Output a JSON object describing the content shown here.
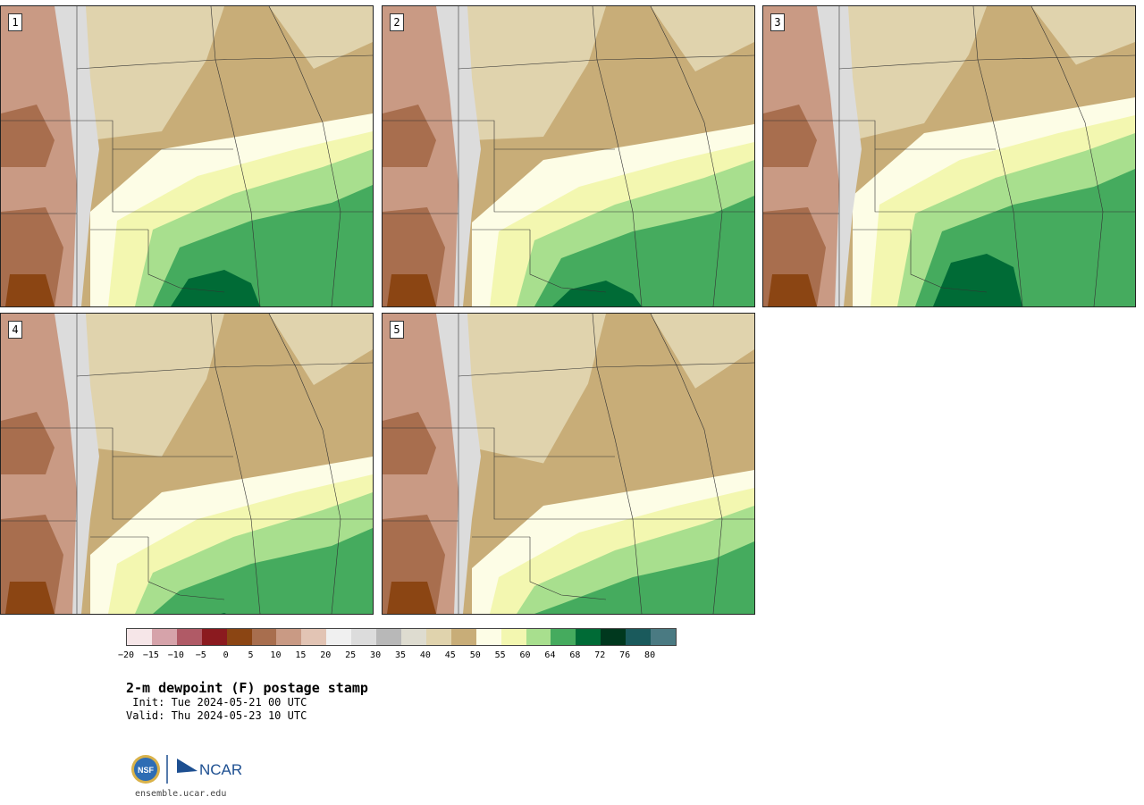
{
  "panels": [
    {
      "label": "1"
    },
    {
      "label": "2"
    },
    {
      "label": "3"
    },
    {
      "label": "4"
    },
    {
      "label": "5"
    }
  ],
  "colorbar": {
    "colors": [
      "#f6e6e8",
      "#d6a3aa",
      "#b05a66",
      "#8b1a1f",
      "#8b4513",
      "#a86e4e",
      "#c99a84",
      "#e2c4b4",
      "#f0f0f0",
      "#dcdcdc",
      "#b8b8b8",
      "#dedcd0",
      "#e0d3ad",
      "#c8ad78",
      "#fdfde6",
      "#f3f7b0",
      "#a8df8e",
      "#45ab5e",
      "#006b36",
      "#00381e",
      "#1a5a5c",
      "#4a7a82"
    ],
    "ticks": [
      "−20",
      "−15",
      "−10",
      "−5",
      "0",
      "5",
      "10",
      "15",
      "20",
      "25",
      "30",
      "35",
      "40",
      "45",
      "50",
      "55",
      "60",
      "64",
      "68",
      "72",
      "76",
      "80"
    ]
  },
  "title": "2-m dewpoint (F) postage stamp",
  "init_text": " Init: Tue 2024-05-21 00 UTC",
  "valid_text": "Valid: Thu 2024-05-23 10 UTC",
  "website": "ensemble.ucar.edu",
  "logo": {
    "nsf": "NSF",
    "ncar": "NCAR"
  }
}
